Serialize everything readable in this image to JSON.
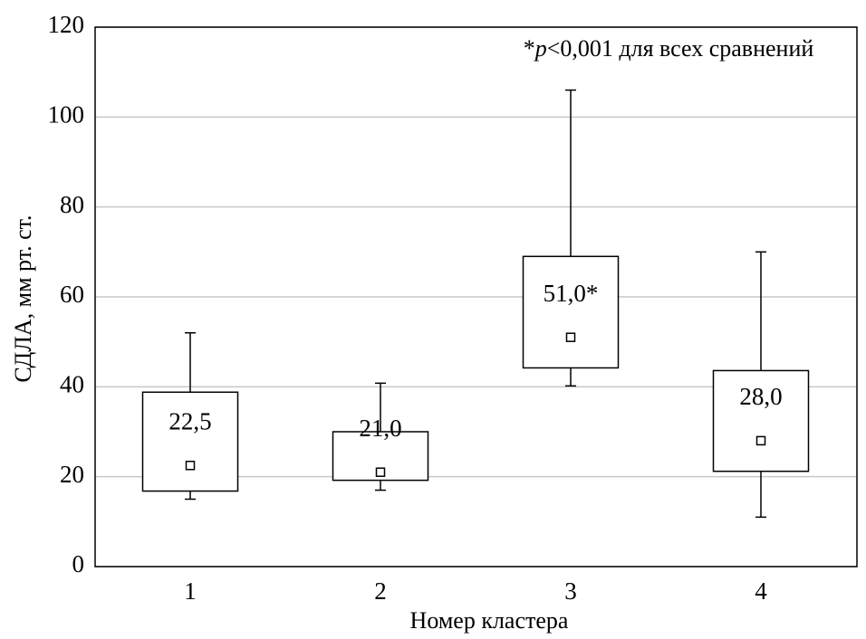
{
  "chart_data": {
    "type": "box",
    "annotation": [
      "*",
      "p",
      "<0,001 для всех сравнений"
    ],
    "x_label": "Номер кластера",
    "y_label": "СДЛА, мм рт. ст.",
    "categories": [
      "1",
      "2",
      "3",
      "4"
    ],
    "boxes": [
      {
        "low": 15,
        "q1": 16.8,
        "q3": 38.8,
        "high": 52,
        "center": 22.5
      },
      {
        "low": 17,
        "q1": 19.2,
        "q3": 30,
        "high": 40.8,
        "center": 21
      },
      {
        "low": 40.2,
        "q1": 44.2,
        "q3": 69,
        "high": 106,
        "center": 51
      },
      {
        "low": 11,
        "q1": 21.2,
        "q3": 43.6,
        "high": 70,
        "center": 28
      }
    ],
    "value_labels": [
      "22,5",
      "21,0",
      "51,0*",
      "28,0"
    ],
    "color": "#000000",
    "ylim": [
      0,
      120
    ],
    "yticks": [
      0,
      20,
      40,
      60,
      80,
      100,
      120
    ],
    "grid": true
  }
}
